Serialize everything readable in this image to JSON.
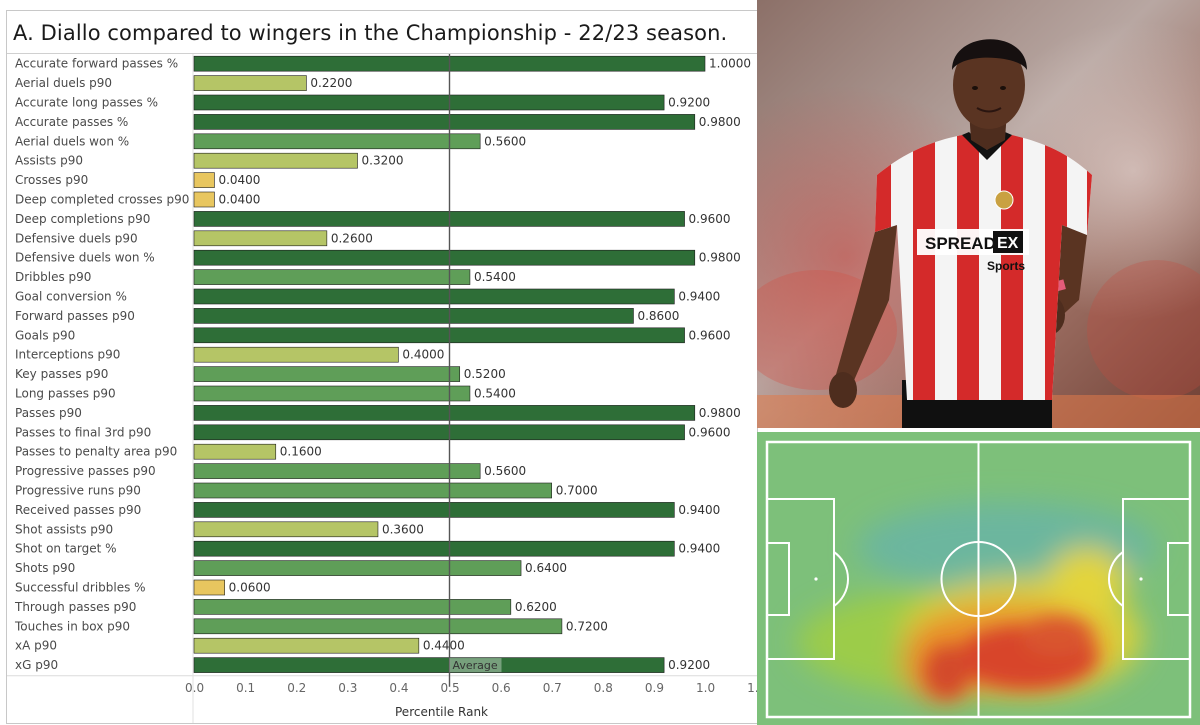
{
  "header": {
    "title": "A. Diallo compared to wingers in the Championship - 22/23 season."
  },
  "photo": {
    "sponsor_line1": "SPREAD",
    "sponsor_box": "EX",
    "sponsor_line2": "Sports"
  },
  "chart_data": {
    "type": "bar",
    "orientation": "horizontal",
    "title": "A. Diallo compared to wingers in the Championship - 22/23 season.",
    "xlabel": "Percentile Rank",
    "ylabel": "",
    "xlim": [
      0,
      1.1
    ],
    "xticks": [
      "0.0",
      "0.1",
      "0.2",
      "0.3",
      "0.4",
      "0.5",
      "0.6",
      "0.7",
      "0.8",
      "0.9",
      "1.0",
      "1."
    ],
    "reference_line": {
      "value": 0.5,
      "label": "Average"
    },
    "grid": false,
    "categories": [
      "Accurate forward passes %",
      "Aerial duels p90",
      "Accurate long passes %",
      "Accurate passes %",
      "Aerial duels won %",
      "Assists p90",
      "Crosses p90",
      "Deep completed crosses p90",
      "Deep completions p90",
      "Defensive duels p90",
      "Defensive duels won %",
      "Dribbles p90",
      "Goal conversion %",
      "Forward passes p90",
      "Goals p90",
      "Interceptions p90",
      "Key passes p90",
      "Long passes p90",
      "Passes p90",
      "Passes to final 3rd p90",
      "Passes to penalty area p90",
      "Progressive passes p90",
      "Progressive runs p90",
      "Received passes p90",
      "Shot assists p90",
      "Shot on target %",
      "Shots p90",
      "Successful dribbles %",
      "Through passes p90",
      "Touches in box p90",
      "xA p90",
      "xG p90"
    ],
    "values": [
      1.0,
      0.22,
      0.92,
      0.98,
      0.56,
      0.32,
      0.04,
      0.04,
      0.96,
      0.26,
      0.98,
      0.54,
      0.94,
      0.86,
      0.96,
      0.4,
      0.52,
      0.54,
      0.98,
      0.96,
      0.16,
      0.56,
      0.7,
      0.94,
      0.36,
      0.94,
      0.64,
      0.06,
      0.62,
      0.72,
      0.44,
      0.92
    ],
    "value_labels": [
      "1.0000",
      "0.2200",
      "0.9200",
      "0.9800",
      "0.5600",
      "0.3200",
      "0.0400",
      "0.0400",
      "0.9600",
      "0.2600",
      "0.9800",
      "0.5400",
      "0.9400",
      "0.8600",
      "0.9600",
      "0.4000",
      "0.5200",
      "0.5400",
      "0.9800",
      "0.9600",
      "0.1600",
      "0.5600",
      "0.7000",
      "0.9400",
      "0.3600",
      "0.9400",
      "0.6400",
      "0.0600",
      "0.6200",
      "0.7200",
      "0.4400",
      "0.9200"
    ],
    "color_scale": [
      "#e8c65f",
      "#b5c566",
      "#5f9e58",
      "#2e6e37"
    ]
  }
}
